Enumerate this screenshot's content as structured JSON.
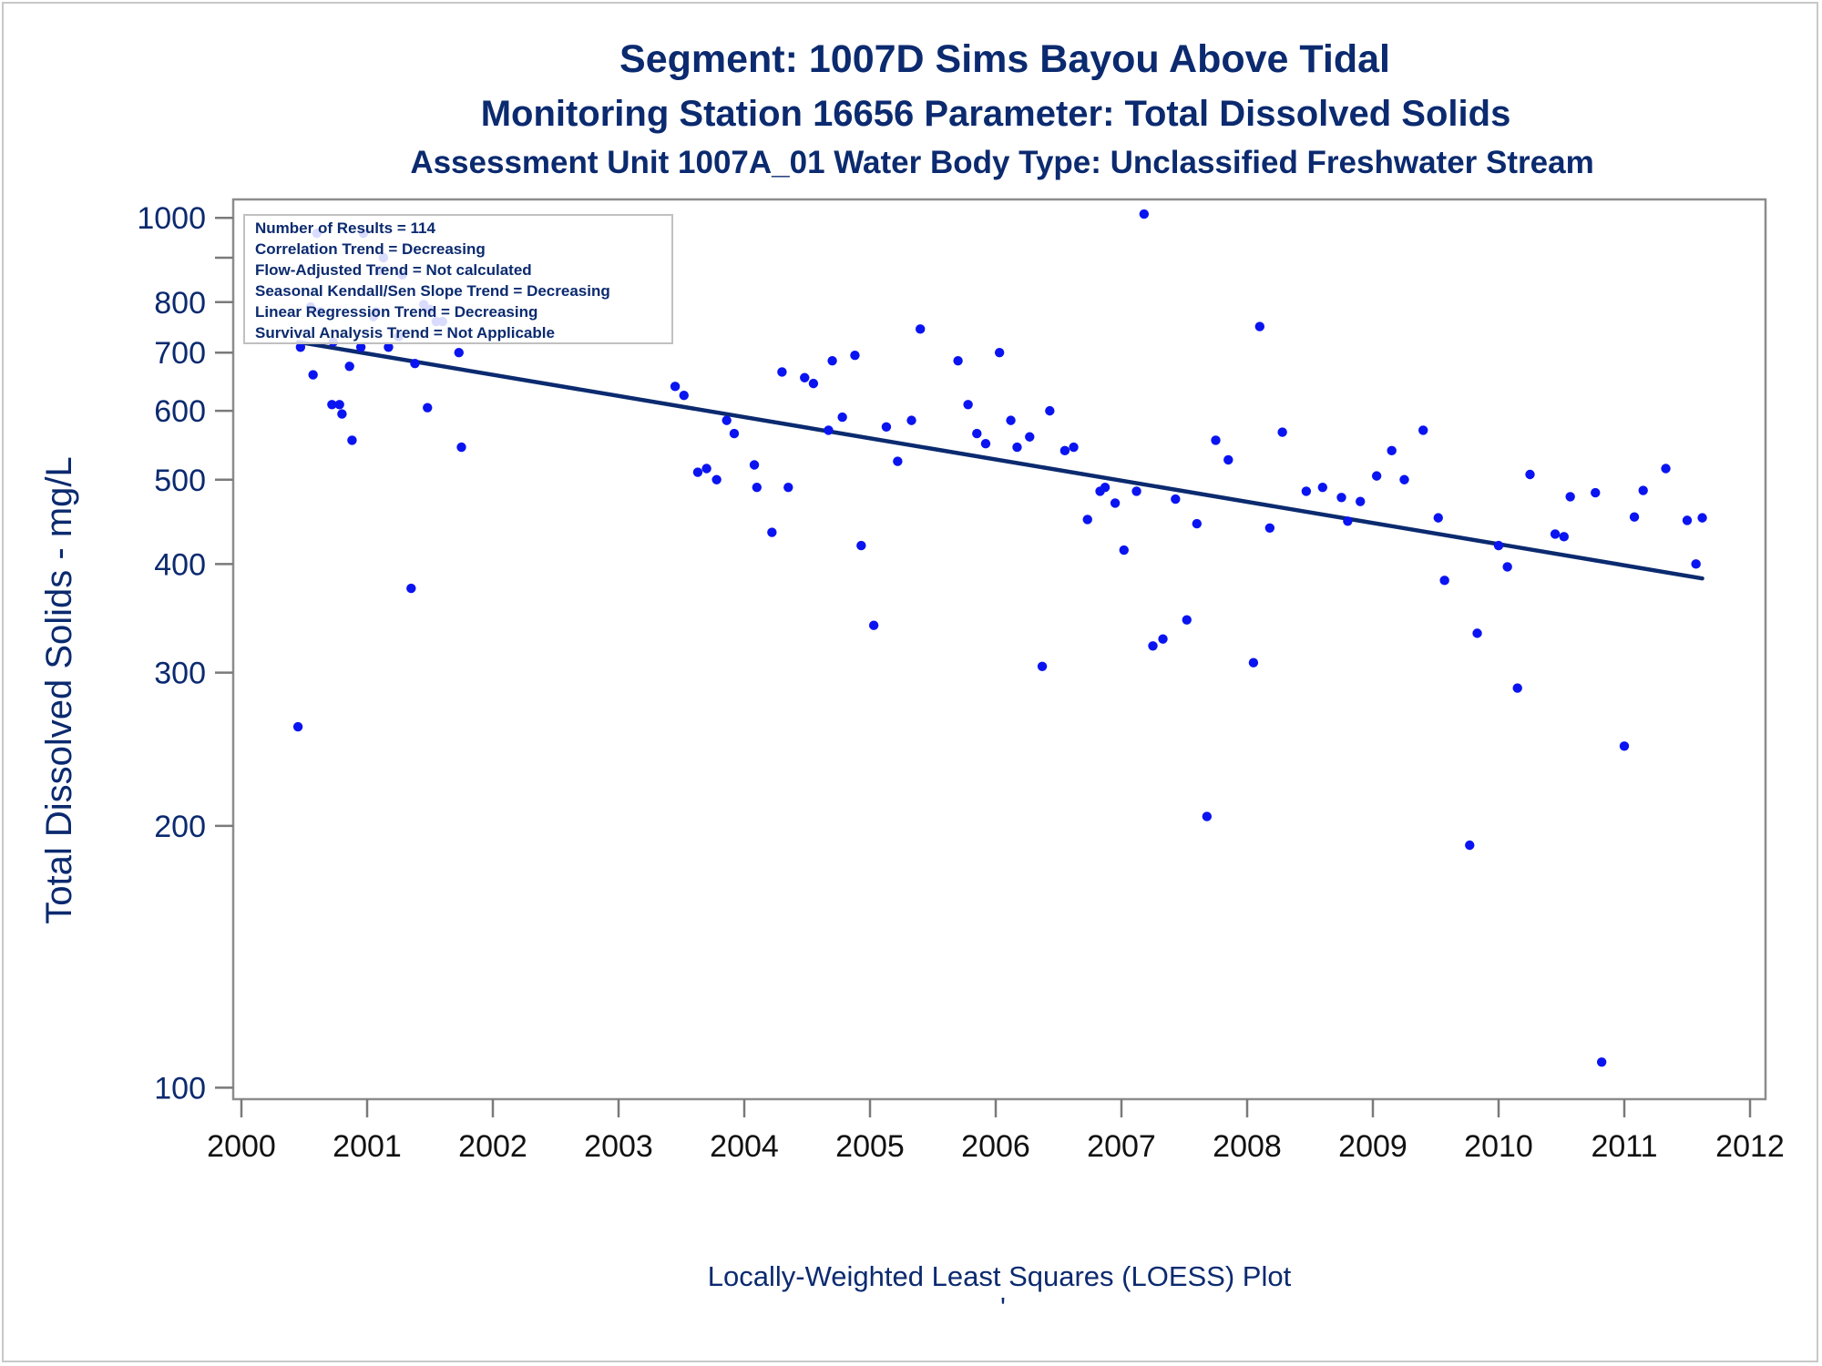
{
  "chart_data": {
    "type": "scatter",
    "title": "Segment: 1007D  Sims Bayou Above Tidal",
    "subtitle": "Monitoring Station 16656 Parameter: Total Dissolved Solids",
    "subtitle2": "Assessment Unit 1007A_01   Water Body Type: Unclassified Freshwater Stream",
    "xlabel": "Locally-Weighted Least Squares (LOESS) Plot",
    "ylabel": "Total Dissolved Solids - mg/L",
    "footnote_mark": "'",
    "y_scale": "log",
    "xlim": [
      2000,
      2012
    ],
    "ylim": [
      97,
      1050
    ],
    "x_ticks": [
      "2000",
      "2001",
      "2002",
      "2003",
      "2004",
      "2005",
      "2006",
      "2007",
      "2008",
      "2009",
      "2010",
      "2011",
      "2012"
    ],
    "y_ticks": [
      "100",
      "200",
      "300",
      "400",
      "500",
      "600",
      "700",
      "800",
      "1000"
    ],
    "grid": false,
    "stats_box": [
      "Number of Results = 114",
      "Correlation Trend = Decreasing",
      "Flow-Adjusted Trend = Not calculated",
      "Seasonal Kendall/Sen Slope Trend = Decreasing",
      "Linear Regression Trend = Decreasing",
      "Survival Analysis Trend = Not Applicable"
    ],
    "stats_box_position": "top-left",
    "trend_line": {
      "x": [
        2000.45,
        2011.62
      ],
      "y": [
        720,
        385
      ],
      "color": "#0b2a6f"
    },
    "point_color": "#0a14f0",
    "points": [
      [
        2000.45,
        260
      ],
      [
        2000.47,
        710
      ],
      [
        2000.55,
        790
      ],
      [
        2000.57,
        660
      ],
      [
        2000.6,
        960
      ],
      [
        2000.63,
        780
      ],
      [
        2000.72,
        610
      ],
      [
        2000.73,
        720
      ],
      [
        2000.78,
        610
      ],
      [
        2000.8,
        595
      ],
      [
        2000.86,
        675
      ],
      [
        2000.88,
        555
      ],
      [
        2000.95,
        710
      ],
      [
        2000.97,
        960
      ],
      [
        2001.05,
        770
      ],
      [
        2001.07,
        780
      ],
      [
        2001.1,
        870
      ],
      [
        2001.13,
        900
      ],
      [
        2001.17,
        710
      ],
      [
        2001.25,
        730
      ],
      [
        2001.28,
        860
      ],
      [
        2001.35,
        375
      ],
      [
        2001.38,
        680
      ],
      [
        2001.45,
        795
      ],
      [
        2001.48,
        605
      ],
      [
        2001.5,
        785
      ],
      [
        2001.55,
        760
      ],
      [
        2001.6,
        760
      ],
      [
        2001.73,
        700
      ],
      [
        2001.75,
        545
      ],
      [
        2003.45,
        640
      ],
      [
        2003.52,
        625
      ],
      [
        2003.63,
        510
      ],
      [
        2003.7,
        515
      ],
      [
        2003.78,
        500
      ],
      [
        2003.86,
        585
      ],
      [
        2003.92,
        565
      ],
      [
        2004.08,
        520
      ],
      [
        2004.1,
        490
      ],
      [
        2004.22,
        435
      ],
      [
        2004.3,
        665
      ],
      [
        2004.35,
        490
      ],
      [
        2004.48,
        655
      ],
      [
        2004.55,
        645
      ],
      [
        2004.67,
        570
      ],
      [
        2004.7,
        685
      ],
      [
        2004.78,
        590
      ],
      [
        2004.88,
        695
      ],
      [
        2004.93,
        420
      ],
      [
        2005.03,
        340
      ],
      [
        2005.13,
        575
      ],
      [
        2005.22,
        525
      ],
      [
        2005.33,
        585
      ],
      [
        2005.4,
        745
      ],
      [
        2005.7,
        685
      ],
      [
        2005.78,
        610
      ],
      [
        2005.85,
        565
      ],
      [
        2005.92,
        550
      ],
      [
        2006.03,
        700
      ],
      [
        2006.12,
        585
      ],
      [
        2006.17,
        545
      ],
      [
        2006.27,
        560
      ],
      [
        2006.37,
        305
      ],
      [
        2006.43,
        600
      ],
      [
        2006.55,
        540
      ],
      [
        2006.62,
        545
      ],
      [
        2006.73,
        450
      ],
      [
        2006.83,
        485
      ],
      [
        2006.87,
        490
      ],
      [
        2006.95,
        470
      ],
      [
        2007.02,
        415
      ],
      [
        2007.12,
        485
      ],
      [
        2007.18,
        1010
      ],
      [
        2007.25,
        322
      ],
      [
        2007.33,
        328
      ],
      [
        2007.43,
        475
      ],
      [
        2007.52,
        345
      ],
      [
        2007.6,
        445
      ],
      [
        2007.68,
        205
      ],
      [
        2007.75,
        555
      ],
      [
        2007.85,
        527
      ],
      [
        2008.05,
        308
      ],
      [
        2008.1,
        750
      ],
      [
        2008.18,
        440
      ],
      [
        2008.28,
        567
      ],
      [
        2008.47,
        485
      ],
      [
        2008.6,
        490
      ],
      [
        2008.75,
        477
      ],
      [
        2008.8,
        448
      ],
      [
        2008.9,
        472
      ],
      [
        2009.03,
        505
      ],
      [
        2009.15,
        540
      ],
      [
        2009.25,
        500
      ],
      [
        2009.4,
        570
      ],
      [
        2009.52,
        452
      ],
      [
        2009.57,
        383
      ],
      [
        2009.77,
        190
      ],
      [
        2009.83,
        333
      ],
      [
        2010.0,
        420
      ],
      [
        2010.07,
        397
      ],
      [
        2010.15,
        288
      ],
      [
        2010.25,
        507
      ],
      [
        2010.45,
        433
      ],
      [
        2010.52,
        430
      ],
      [
        2010.57,
        478
      ],
      [
        2010.77,
        483
      ],
      [
        2010.82,
        107
      ],
      [
        2011.0,
        247
      ],
      [
        2011.08,
        453
      ],
      [
        2011.15,
        486
      ],
      [
        2011.33,
        515
      ],
      [
        2011.5,
        449
      ],
      [
        2011.57,
        400
      ],
      [
        2011.62,
        452
      ]
    ]
  }
}
